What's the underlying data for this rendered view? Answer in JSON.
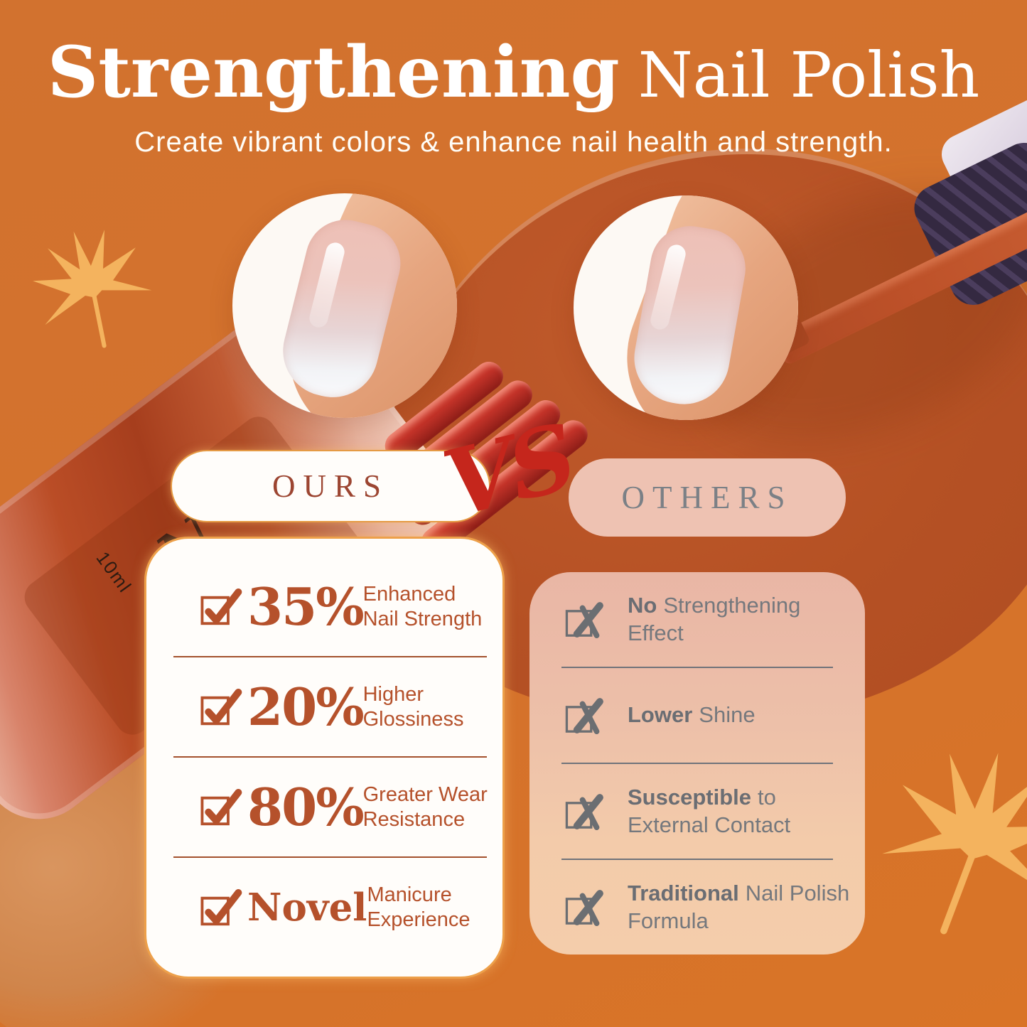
{
  "page": {
    "background_color": "#d2712f",
    "accent_rust": "#b5512b",
    "vs_red": "#c5261c",
    "leaf_color": "#f4b35e",
    "others_gray": "#75787d"
  },
  "header": {
    "title_emphasis": "Strengthening",
    "title_rest": "Nail Polish",
    "subtitle": "Create vibrant colors & enhance nail health and strength."
  },
  "compare": {
    "vs_label": "VS",
    "ours": {
      "heading": "OURS",
      "icon": "checkmark-icon",
      "rows": [
        {
          "value": "35%",
          "label_line1": "Enhanced",
          "label_line2": "Nail Strength"
        },
        {
          "value": "20%",
          "label_line1": "Higher",
          "label_line2": "Glossiness"
        },
        {
          "value": "80%",
          "label_line1": "Greater Wear",
          "label_line2": "Resistance"
        },
        {
          "value": "Novel",
          "label_line1": "Manicure",
          "label_line2": "Experience"
        }
      ]
    },
    "others": {
      "heading": "OTHERS",
      "icon": "cross-icon",
      "rows": [
        {
          "bold": "No",
          "rest": "Strengthening",
          "line2": "Effect"
        },
        {
          "bold": "Lower",
          "rest": "Shine",
          "line2": ""
        },
        {
          "bold": "Susceptible",
          "rest": "to",
          "line2": "External Contact"
        },
        {
          "bold": "Traditional",
          "rest": "Nail Polish",
          "line2": "Formula"
        }
      ]
    }
  },
  "bottle": {
    "label_letter": "N",
    "label_volume": "10ml"
  }
}
